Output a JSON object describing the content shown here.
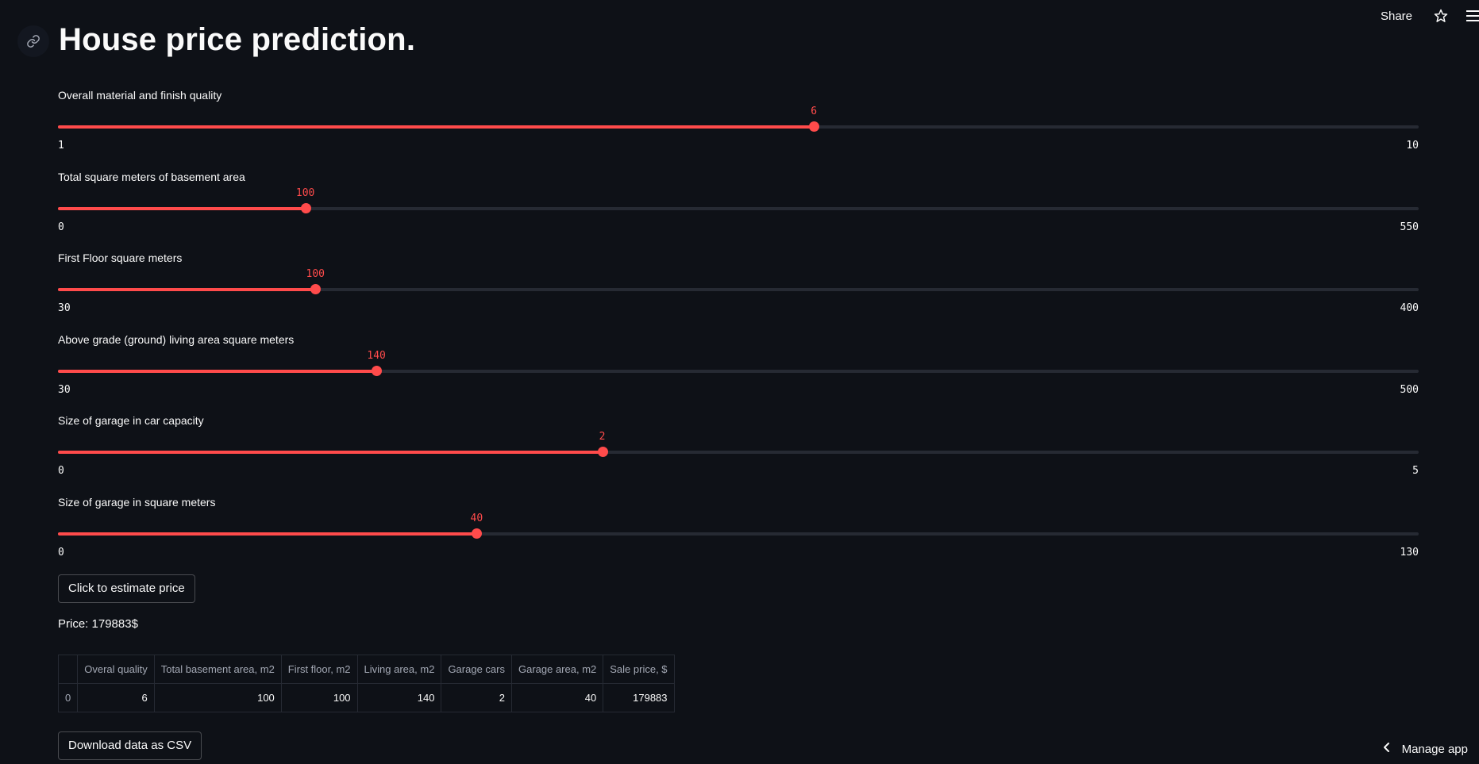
{
  "toolbar": {
    "share_label": "Share",
    "star_icon": "star-icon",
    "menu_icon": "hamburger-menu-icon"
  },
  "title": "House price prediction.",
  "anchor_icon": "link-icon",
  "accent_color": "#ff4b4b",
  "sliders": [
    {
      "label": "Overall material and finish quality",
      "min": 1,
      "max": 10,
      "value": 6,
      "min_label": "1",
      "max_label": "10",
      "value_label": "6"
    },
    {
      "label": "Total square meters of basement area",
      "min": 0,
      "max": 550,
      "value": 100,
      "min_label": "0",
      "max_label": "550",
      "value_label": "100"
    },
    {
      "label": "First Floor square meters",
      "min": 30,
      "max": 400,
      "value": 100,
      "min_label": "30",
      "max_label": "400",
      "value_label": "100"
    },
    {
      "label": "Above grade (ground) living area square meters",
      "min": 30,
      "max": 500,
      "value": 140,
      "min_label": "30",
      "max_label": "500",
      "value_label": "140"
    },
    {
      "label": "Size of garage in car capacity",
      "min": 0,
      "max": 5,
      "value": 2,
      "min_label": "0",
      "max_label": "5",
      "value_label": "2"
    },
    {
      "label": "Size of garage in square meters",
      "min": 0,
      "max": 130,
      "value": 40,
      "min_label": "0",
      "max_label": "130",
      "value_label": "40"
    }
  ],
  "estimate_button": "Click to estimate price",
  "price_text": "Price: 179883$",
  "table": {
    "headers": [
      "",
      "Overal quality",
      "Total basement area, m2",
      "First floor, m2",
      "Living area, m2",
      "Garage cars",
      "Garage area, m2",
      "Sale price, $"
    ],
    "rows": [
      [
        "0",
        "6",
        "100",
        "100",
        "140",
        "2",
        "40",
        "179883"
      ]
    ]
  },
  "download_button": "Download data as CSV",
  "manage_app": {
    "label": "Manage app",
    "icon": "chevron-left-icon"
  }
}
